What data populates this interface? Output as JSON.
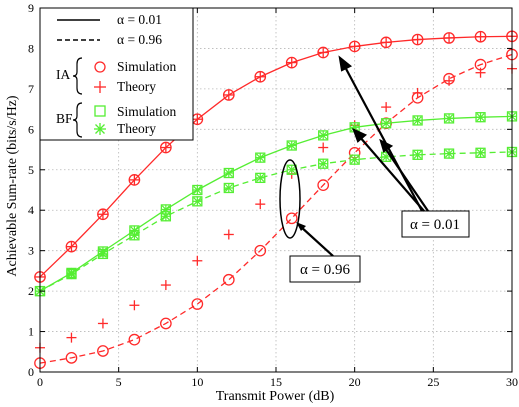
{
  "chart_data": {
    "type": "line",
    "xlabel": "Transmit Power (dB)",
    "ylabel": "Achievable Sum-rate (bits/s/Hz)",
    "xlim": [
      0,
      30
    ],
    "ylim": [
      0,
      9
    ],
    "xticks": [
      0,
      5,
      10,
      15,
      20,
      25,
      30
    ],
    "yticks": [
      0,
      1,
      2,
      3,
      4,
      5,
      6,
      7,
      8,
      9
    ],
    "grid": true,
    "legend_position": "top-left",
    "legend": {
      "alpha_low_label": "α = 0.01",
      "alpha_high_label": "α = 0.96",
      "ia_label": "IA",
      "bf_label": "BF",
      "simulation_label": "Simulation",
      "theory_label": "Theory"
    },
    "annotations": {
      "alpha_low": "α = 0.01",
      "alpha_high": "α = 0.96"
    },
    "colors": {
      "ia": "#ff2a2a",
      "bf": "#55ee33"
    },
    "x": [
      0,
      2,
      4,
      6,
      8,
      10,
      12,
      14,
      16,
      18,
      20,
      22,
      24,
      26,
      28,
      30
    ],
    "series": [
      {
        "method": "IA",
        "alpha": 0.01,
        "style": "solid",
        "simulation": [
          2.35,
          3.1,
          3.9,
          4.75,
          5.55,
          6.25,
          6.85,
          7.3,
          7.65,
          7.9,
          8.05,
          8.15,
          8.22,
          8.26,
          8.29,
          8.3
        ],
        "theory": [
          2.35,
          3.1,
          3.9,
          4.75,
          5.55,
          6.25,
          6.85,
          7.3,
          7.65,
          7.9,
          8.05,
          8.15,
          8.22,
          8.26,
          8.29,
          8.3
        ]
      },
      {
        "method": "IA",
        "alpha": 0.96,
        "style": "dashed",
        "simulation": [
          0.22,
          0.35,
          0.52,
          0.8,
          1.2,
          1.68,
          2.28,
          3.0,
          3.8,
          4.62,
          5.42,
          6.15,
          6.78,
          7.25,
          7.6,
          7.85
        ],
        "theory": [
          0.6,
          0.85,
          1.2,
          1.65,
          2.15,
          2.75,
          3.4,
          4.15,
          4.9,
          5.55,
          6.1,
          6.55,
          6.9,
          7.2,
          7.4,
          7.5
        ]
      },
      {
        "method": "BF",
        "alpha": 0.01,
        "style": "solid",
        "simulation": [
          2.0,
          2.45,
          2.98,
          3.5,
          4.02,
          4.5,
          4.92,
          5.3,
          5.6,
          5.85,
          6.05,
          6.15,
          6.22,
          6.27,
          6.3,
          6.32
        ],
        "theory": [
          2.0,
          2.45,
          2.98,
          3.5,
          4.02,
          4.5,
          4.92,
          5.3,
          5.6,
          5.85,
          6.05,
          6.15,
          6.22,
          6.27,
          6.3,
          6.32
        ]
      },
      {
        "method": "BF",
        "alpha": 0.96,
        "style": "dashed",
        "simulation": [
          2.0,
          2.42,
          2.92,
          3.38,
          3.85,
          4.22,
          4.55,
          4.8,
          5.0,
          5.15,
          5.25,
          5.32,
          5.37,
          5.4,
          5.42,
          5.44
        ],
        "theory": [
          2.0,
          2.42,
          2.92,
          3.38,
          3.85,
          4.22,
          4.55,
          4.8,
          5.0,
          5.15,
          5.25,
          5.32,
          5.37,
          5.4,
          5.42,
          5.44
        ]
      }
    ]
  }
}
